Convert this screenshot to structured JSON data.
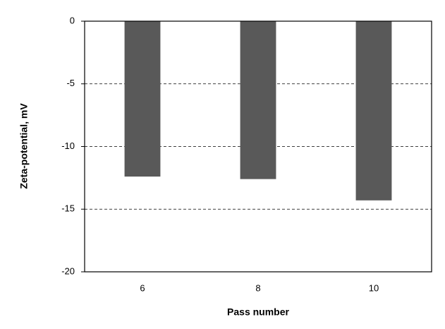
{
  "chart_data": {
    "type": "bar",
    "x_label": "Pass number",
    "y_label": "Zeta-potential,  mV",
    "categories": [
      "6",
      "8",
      "10"
    ],
    "values": [
      -12.4,
      -12.6,
      -14.3
    ],
    "color": "#595959",
    "ylim": [
      -20,
      0
    ],
    "yticks": [
      -20,
      -15,
      -10,
      -5,
      0
    ],
    "grid": true
  }
}
